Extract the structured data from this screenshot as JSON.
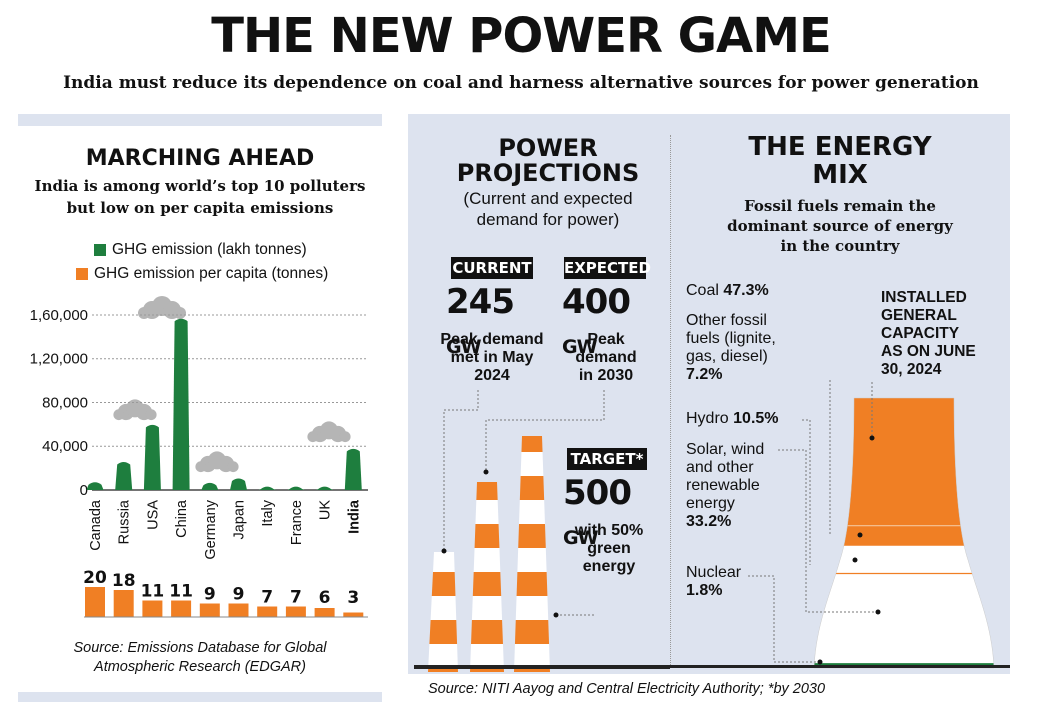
{
  "header": {
    "title": "THE NEW POWER GAME",
    "subtitle": "India must reduce its dependence on coal and harness alternative sources for power generation"
  },
  "colors": {
    "green": "#1e7e3e",
    "orange": "#f07f24",
    "panel": "#dde3ef",
    "black": "#111111"
  },
  "marching": {
    "title": "MARCHING AHEAD",
    "subtitle_line1": "India is among world’s top 10 polluters",
    "subtitle_line2": "but low on per capita emissions",
    "source_line1": "Source: Emissions Database for Global",
    "source_line2": "Atmospheric Research (EDGAR)"
  },
  "chart_data": [
    {
      "type": "bar",
      "title": "GHG emission (lakh tonnes)",
      "categories": [
        "Canada",
        "Russia",
        "USA",
        "China",
        "Germany",
        "Japan",
        "Italy",
        "France",
        "UK",
        "India"
      ],
      "series": [
        {
          "name": "GHG emission (lakh tonnes)",
          "values": [
            7500,
            26000,
            60000,
            157000,
            7000,
            11000,
            3500,
            3500,
            3500,
            38000
          ]
        }
      ],
      "ylim": [
        0,
        170000
      ],
      "yticks": [
        0,
        40000,
        80000,
        120000,
        160000
      ],
      "ytick_labels": [
        "0",
        "40,000",
        "80,000",
        "1,20,000",
        "1,60,000"
      ],
      "legend": [
        {
          "label": "GHG emission (lakh tonnes)",
          "color": "#1e7e3e"
        },
        {
          "label": "GHG emission per capita (tonnes)",
          "color": "#f07f24"
        }
      ]
    },
    {
      "type": "bar",
      "title": "GHG emission per capita (tonnes)",
      "categories": [
        "Canada",
        "Russia",
        "USA",
        "China",
        "Germany",
        "Japan",
        "Italy",
        "France",
        "UK",
        "India"
      ],
      "series": [
        {
          "name": "GHG emission per capita (tonnes)",
          "values": [
            20,
            18,
            11,
            11,
            9,
            9,
            7,
            7,
            6,
            3
          ]
        }
      ],
      "value_labels": [
        "20",
        "18",
        "11",
        "11",
        "9",
        "9",
        "7",
        "7",
        "6",
        "3"
      ],
      "ylim": [
        0,
        20
      ]
    },
    {
      "type": "bar",
      "title": "Installed general capacity share (%)",
      "categories": [
        "Coal",
        "Other fossil fuels",
        "Hydro",
        "Solar, wind and other renewable energy",
        "Nuclear"
      ],
      "values": [
        47.3,
        7.2,
        10.5,
        33.2,
        1.8
      ]
    }
  ],
  "projections": {
    "title_line1": "POWER",
    "title_line2": "PROJECTIONS",
    "sub_line1": "(Current and expected",
    "sub_line2": "demand for power)",
    "current": {
      "tag": "CURRENT",
      "value": "245",
      "unit": "GW",
      "desc1": "Peak demand",
      "desc2": "met in May",
      "desc3": "2024"
    },
    "expected": {
      "tag": "EXPECTED",
      "value": "400",
      "unit": "GW",
      "desc1": "Peak",
      "desc2": "demand",
      "desc3": "in 2030"
    },
    "target": {
      "tag": "TARGET*",
      "value": "500",
      "unit": "GW",
      "desc1": "with 50%",
      "desc2": "green",
      "desc3": "energy"
    }
  },
  "mix": {
    "title_line1": "THE ENERGY",
    "title_line2": "MIX",
    "sub_line1": "Fossil fuels remain the",
    "sub_line2": "dominant source of energy",
    "sub_line3": "in the country",
    "installed_line1": "INSTALLED",
    "installed_line2": "GENERAL",
    "installed_line3": "CAPACITY",
    "installed_line4": "AS ON JUNE",
    "installed_line5": "30, 2024",
    "coal_name": "Coal",
    "coal_val": "47.3%",
    "other_l1": "Other fossil",
    "other_l2": "fuels (lignite,",
    "other_l3": "gas, diesel)",
    "other_val": "7.2%",
    "hydro_name": "Hydro",
    "hydro_val": "10.5%",
    "solar_l1": "Solar, wind",
    "solar_l2": "and other",
    "solar_l3": "renewable",
    "solar_l4": "energy",
    "solar_val": "33.2%",
    "nuclear_name": "Nuclear",
    "nuclear_val": "1.8%"
  },
  "footer": {
    "source": "Source: NITI Aayog and Central Electricity Authority; *by 2030"
  }
}
